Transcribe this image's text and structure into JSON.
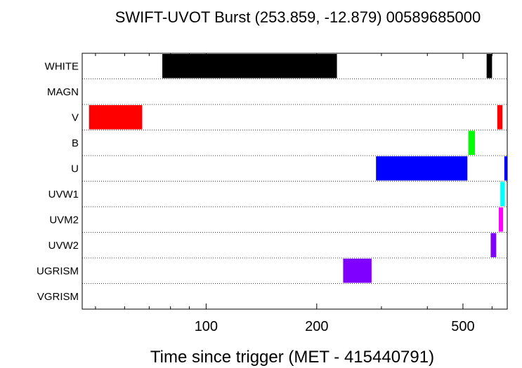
{
  "chart_data": {
    "type": "bar",
    "title": "SWIFT-UVOT Burst (253.859, -12.879) 00589685000",
    "xlabel": "Time since trigger (MET - 415440791)",
    "ylabel": "",
    "x_scale": "log",
    "xlim": [
      46,
      660
    ],
    "x_ticks": [
      100,
      200,
      500
    ],
    "grid": true,
    "categories": [
      "WHITE",
      "MAGN",
      "V",
      "B",
      "U",
      "UVW1",
      "UVM2",
      "UVW2",
      "UGRISM",
      "VGRISM"
    ],
    "series": [
      {
        "filter": "WHITE",
        "color": "#000000",
        "intervals": [
          [
            76,
            227
          ],
          [
            580,
            600
          ]
        ]
      },
      {
        "filter": "MAGN",
        "color": "#000000",
        "intervals": []
      },
      {
        "filter": "V",
        "color": "#ff0000",
        "intervals": [
          [
            48,
            67
          ],
          [
            620,
            640
          ]
        ]
      },
      {
        "filter": "B",
        "color": "#00ff00",
        "intervals": [
          [
            517,
            539
          ]
        ]
      },
      {
        "filter": "U",
        "color": "#0000ff",
        "intervals": [
          [
            290,
            514
          ],
          [
            648,
            660
          ]
        ]
      },
      {
        "filter": "UVW1",
        "color": "#00ffff",
        "intervals": [
          [
            632,
            650
          ]
        ]
      },
      {
        "filter": "UVM2",
        "color": "#ff00ff",
        "intervals": [
          [
            626,
            643
          ]
        ]
      },
      {
        "filter": "UVW2",
        "color": "#8000ff",
        "intervals": [
          [
            595,
            616
          ]
        ]
      },
      {
        "filter": "UGRISM",
        "color": "#8000ff",
        "intervals": [
          [
            236,
            282
          ]
        ]
      },
      {
        "filter": "VGRISM",
        "color": "#000000",
        "intervals": []
      }
    ]
  }
}
